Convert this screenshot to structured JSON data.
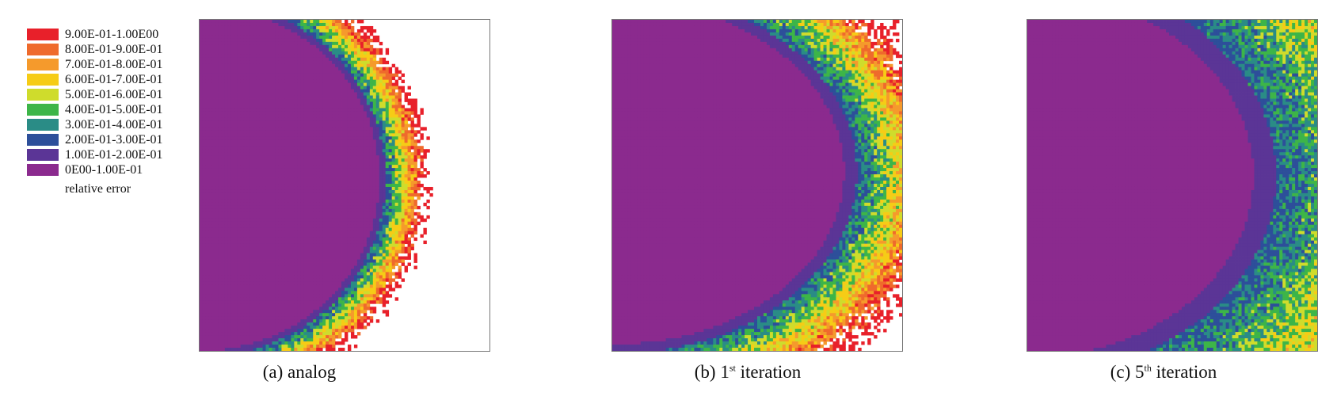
{
  "chart_data": {
    "type": "heatmap",
    "legend": {
      "title": "relative error",
      "placement": "top-left",
      "entries": [
        {
          "label": "9.00E-01-1.00E00",
          "color": "#e8202a"
        },
        {
          "label": "8.00E-01-9.00E-01",
          "color": "#ef6a2c"
        },
        {
          "label": "7.00E-01-8.00E-01",
          "color": "#f59a2c"
        },
        {
          "label": "6.00E-01-7.00E-01",
          "color": "#f6cc16"
        },
        {
          "label": "5.00E-01-6.00E-01",
          "color": "#cfdc2c"
        },
        {
          "label": "4.00E-01-5.00E-01",
          "color": "#3db548"
        },
        {
          "label": "3.00E-01-4.00E-01",
          "color": "#2a8c86"
        },
        {
          "label": "2.00E-01-3.00E-01",
          "color": "#2d4f9a"
        },
        {
          "label": "1.00E-01-2.00E-01",
          "color": "#5b3596"
        },
        {
          "label": "0E00-1.00E-01",
          "color": "#8b2a8e"
        }
      ]
    },
    "panels": [
      {
        "caption_prefix": "(a) analog",
        "sup": "",
        "caption_suffix": "",
        "pattern": "analog"
      },
      {
        "caption_prefix": "(b) 1",
        "sup": "st",
        "caption_suffix": " iteration",
        "pattern": "iter1"
      },
      {
        "caption_prefix": "(c) 5",
        "sup": "th",
        "caption_suffix": " iteration",
        "pattern": "iter5"
      }
    ]
  }
}
